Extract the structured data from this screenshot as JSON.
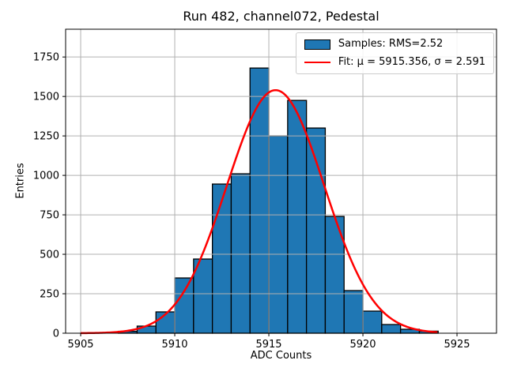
{
  "chart_data": {
    "type": "bar",
    "subtype": "histogram-with-gaussian-fit",
    "title": "Run 482, channel072, Pedestal",
    "xlabel": "ADC Counts",
    "ylabel": "Entries",
    "xlim": [
      5904.2,
      5927.1
    ],
    "ylim": [
      0,
      1926
    ],
    "xticks": [
      5905,
      5910,
      5915,
      5920,
      5925
    ],
    "yticks": [
      0,
      250,
      500,
      750,
      1000,
      1250,
      1500,
      1750
    ],
    "grid": true,
    "bin_edges": [
      5907,
      5908,
      5909,
      5910,
      5911,
      5912,
      5913,
      5914,
      5915,
      5916,
      5917,
      5918,
      5919,
      5920,
      5921,
      5922,
      5923,
      5924
    ],
    "counts": [
      12,
      45,
      135,
      350,
      470,
      945,
      1010,
      1680,
      1250,
      1475,
      1300,
      740,
      270,
      140,
      55,
      25,
      13
    ],
    "fit": {
      "mu": 5915.356,
      "sigma": 2.591,
      "amplitude": 1540,
      "x_start": 5905,
      "x_end": 5924
    },
    "legend": {
      "position": "upper right",
      "items": [
        {
          "type": "patch",
          "color": "#1f77b4",
          "label": "Samples: RMS=2.52"
        },
        {
          "type": "line",
          "color": "#ff0000",
          "label": "Fit: μ = 5915.356, σ = 2.591"
        }
      ]
    },
    "colors": {
      "bar_fill": "#1f77b4",
      "bar_edge": "#000000",
      "fit_line": "#ff0000",
      "grid": "#b0b0b0",
      "spine": "#000000"
    }
  }
}
